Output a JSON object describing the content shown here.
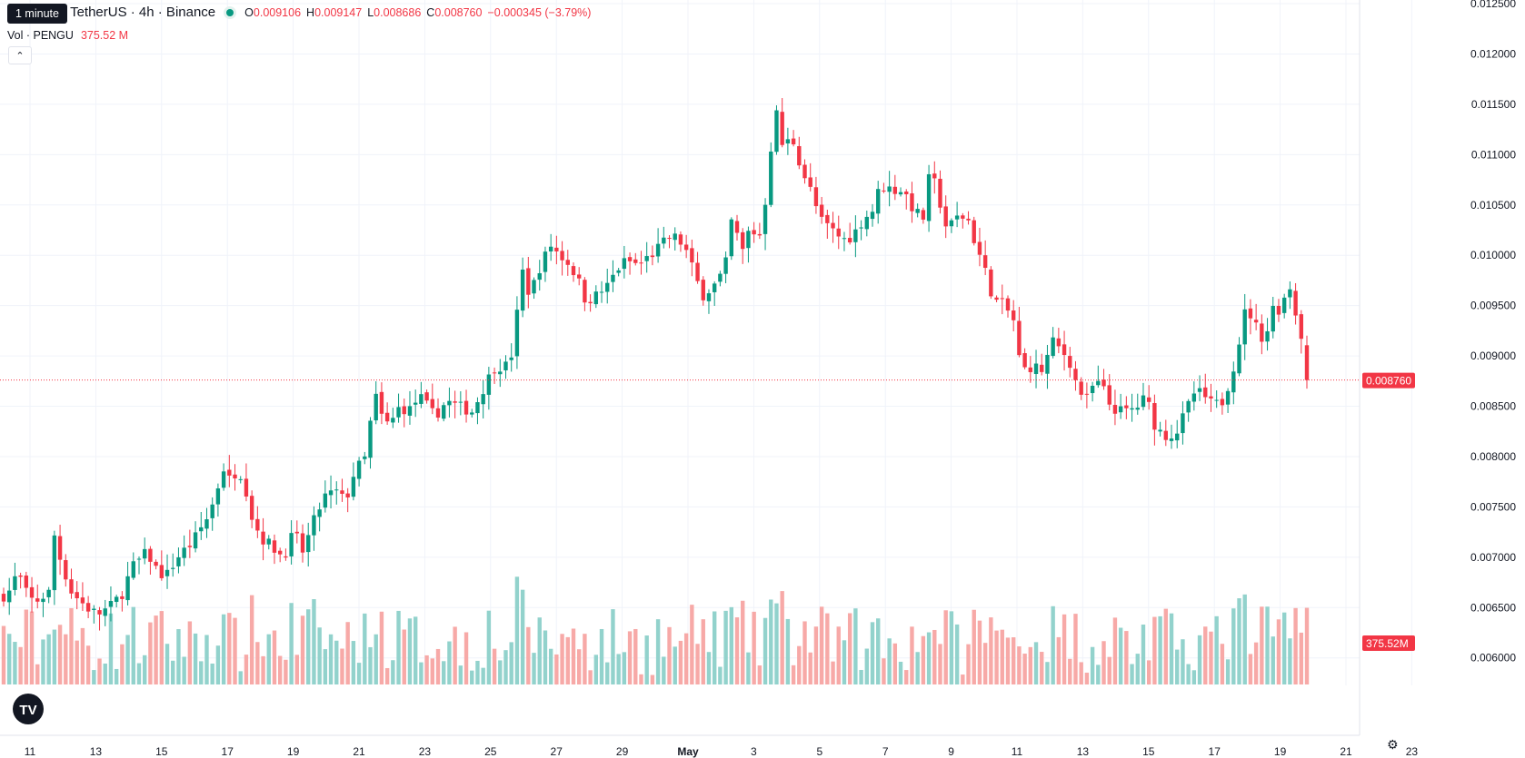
{
  "header": {
    "symbol": "PENGU / TetherUS · 4h · Binance",
    "symbol_visible": "U / TetherUS · 4h · Binance",
    "tooltip": "1 minute",
    "ohlc": [
      {
        "k": "O",
        "v": "0.009106"
      },
      {
        "k": "H",
        "v": "0.009147"
      },
      {
        "k": "L",
        "v": "0.008686"
      },
      {
        "k": "C",
        "v": "0.008760"
      }
    ],
    "change": "−0.000345 (−3.79%)",
    "volume_label": "Vol · PENGU",
    "volume_value": "375.52 M"
  },
  "colors": {
    "up": "#089981",
    "down": "#f23645",
    "up_volume": "#92d2cc",
    "down_volume": "#f7a9a7",
    "grid": "#f0f3fa"
  },
  "chart_data": {
    "type": "candlestick",
    "interval": "4h",
    "price_axis": {
      "ticks": [
        "0.012500",
        "0.012000",
        "0.011500",
        "0.011000",
        "0.010500",
        "0.010000",
        "0.009500",
        "0.009000",
        "0.008500",
        "0.008000",
        "0.007500",
        "0.007000",
        "0.006500",
        "0.006000"
      ],
      "min": 0.00588,
      "max": 0.0125
    },
    "last_price": "0.008760",
    "last_volume": "375.52M",
    "x_axis": {
      "ticks": [
        "11",
        "13",
        "15",
        "17",
        "19",
        "21",
        "23",
        "25",
        "27",
        "29",
        "May",
        "3",
        "5",
        "7",
        "9",
        "11",
        "13",
        "15",
        "17",
        "19",
        "21",
        "23"
      ]
    },
    "close_path": [
      [
        0,
        0.00662
      ],
      [
        5,
        0.00668
      ],
      [
        10,
        0.0069
      ],
      [
        12,
        0.0067
      ],
      [
        20,
        0.00655
      ],
      [
        25,
        0.0066
      ],
      [
        30,
        0.00665
      ],
      [
        33,
        0.00725
      ],
      [
        38,
        0.00695
      ],
      [
        45,
        0.00665
      ],
      [
        55,
        0.0065
      ],
      [
        62,
        0.00643
      ],
      [
        70,
        0.0065
      ],
      [
        78,
        0.00663
      ],
      [
        85,
        0.0069
      ],
      [
        95,
        0.00705
      ],
      [
        100,
        0.0069
      ],
      [
        107,
        0.0068
      ],
      [
        115,
        0.007
      ],
      [
        125,
        0.00715
      ],
      [
        135,
        0.0074
      ],
      [
        140,
        0.0076
      ],
      [
        145,
        0.0079
      ],
      [
        150,
        0.00775
      ],
      [
        155,
        0.0079
      ],
      [
        160,
        0.0077
      ],
      [
        163,
        0.00745
      ],
      [
        170,
        0.0072
      ],
      [
        178,
        0.0071
      ],
      [
        185,
        0.007
      ],
      [
        192,
        0.00725
      ],
      [
        198,
        0.00705
      ],
      [
        205,
        0.00735
      ],
      [
        212,
        0.0076
      ],
      [
        220,
        0.00765
      ],
      [
        226,
        0.00755
      ],
      [
        232,
        0.00785
      ],
      [
        240,
        0.008
      ],
      [
        245,
        0.00865
      ],
      [
        250,
        0.0084
      ],
      [
        255,
        0.0083
      ],
      [
        262,
        0.0085
      ],
      [
        268,
        0.00845
      ],
      [
        275,
        0.0086
      ],
      [
        285,
        0.0084
      ],
      [
        293,
        0.00855
      ],
      [
        300,
        0.0085
      ],
      [
        310,
        0.00845
      ],
      [
        318,
        0.0087
      ],
      [
        325,
        0.0089
      ],
      [
        333,
        0.0089
      ],
      [
        338,
        0.0091
      ],
      [
        342,
        0.0099
      ],
      [
        348,
        0.0096
      ],
      [
        355,
        0.0099
      ],
      [
        362,
        0.0101
      ],
      [
        368,
        0.01
      ],
      [
        375,
        0.0099
      ],
      [
        380,
        0.00975
      ],
      [
        385,
        0.00955
      ],
      [
        392,
        0.0096
      ],
      [
        400,
        0.0097
      ],
      [
        405,
        0.00985
      ],
      [
        412,
        0.00995
      ],
      [
        420,
        0.0099
      ],
      [
        428,
        0.01
      ],
      [
        435,
        0.0101
      ],
      [
        442,
        0.0102
      ],
      [
        450,
        0.0101
      ],
      [
        456,
        0.00985
      ],
      [
        462,
        0.0096
      ],
      [
        470,
        0.0097
      ],
      [
        477,
        0.00985
      ],
      [
        482,
        0.0104
      ],
      [
        488,
        0.01
      ],
      [
        493,
        0.01025
      ],
      [
        500,
        0.0102
      ],
      [
        505,
        0.01065
      ],
      [
        510,
        0.0115
      ],
      [
        515,
        0.0111
      ],
      [
        522,
        0.01115
      ],
      [
        528,
        0.01085
      ],
      [
        535,
        0.0106
      ],
      [
        540,
        0.01035
      ],
      [
        548,
        0.01025
      ],
      [
        555,
        0.01015
      ],
      [
        562,
        0.0102
      ],
      [
        568,
        0.01035
      ],
      [
        575,
        0.01045
      ],
      [
        580,
        0.0107
      ],
      [
        588,
        0.01065
      ],
      [
        595,
        0.01065
      ],
      [
        602,
        0.01045
      ],
      [
        608,
        0.01035
      ],
      [
        613,
        0.01085
      ],
      [
        618,
        0.0106
      ],
      [
        624,
        0.01025
      ],
      [
        632,
        0.0104
      ],
      [
        638,
        0.01035
      ],
      [
        643,
        0.0101
      ],
      [
        648,
        0.0099
      ],
      [
        655,
        0.00955
      ],
      [
        662,
        0.0095
      ],
      [
        668,
        0.00935
      ],
      [
        673,
        0.00885
      ],
      [
        680,
        0.0089
      ],
      [
        688,
        0.00885
      ],
      [
        693,
        0.00915
      ],
      [
        700,
        0.00905
      ],
      [
        705,
        0.00895
      ],
      [
        710,
        0.0087
      ],
      [
        716,
        0.00855
      ],
      [
        722,
        0.00875
      ],
      [
        728,
        0.00865
      ],
      [
        732,
        0.0085
      ],
      [
        738,
        0.00845
      ],
      [
        744,
        0.00845
      ],
      [
        750,
        0.0085
      ],
      [
        756,
        0.0086
      ],
      [
        760,
        0.00835
      ],
      [
        765,
        0.00825
      ],
      [
        770,
        0.0082
      ],
      [
        776,
        0.00825
      ],
      [
        782,
        0.00845
      ],
      [
        788,
        0.00865
      ],
      [
        794,
        0.0086
      ],
      [
        800,
        0.0085
      ],
      [
        806,
        0.00855
      ],
      [
        812,
        0.0088
      ],
      [
        818,
        0.0092
      ],
      [
        822,
        0.0095
      ],
      [
        828,
        0.0093
      ],
      [
        834,
        0.00915
      ],
      [
        840,
        0.0095
      ],
      [
        845,
        0.00945
      ],
      [
        850,
        0.00975
      ],
      [
        854,
        0.00945
      ],
      [
        858,
        0.00925
      ],
      [
        862,
        0.00876
      ]
    ]
  }
}
